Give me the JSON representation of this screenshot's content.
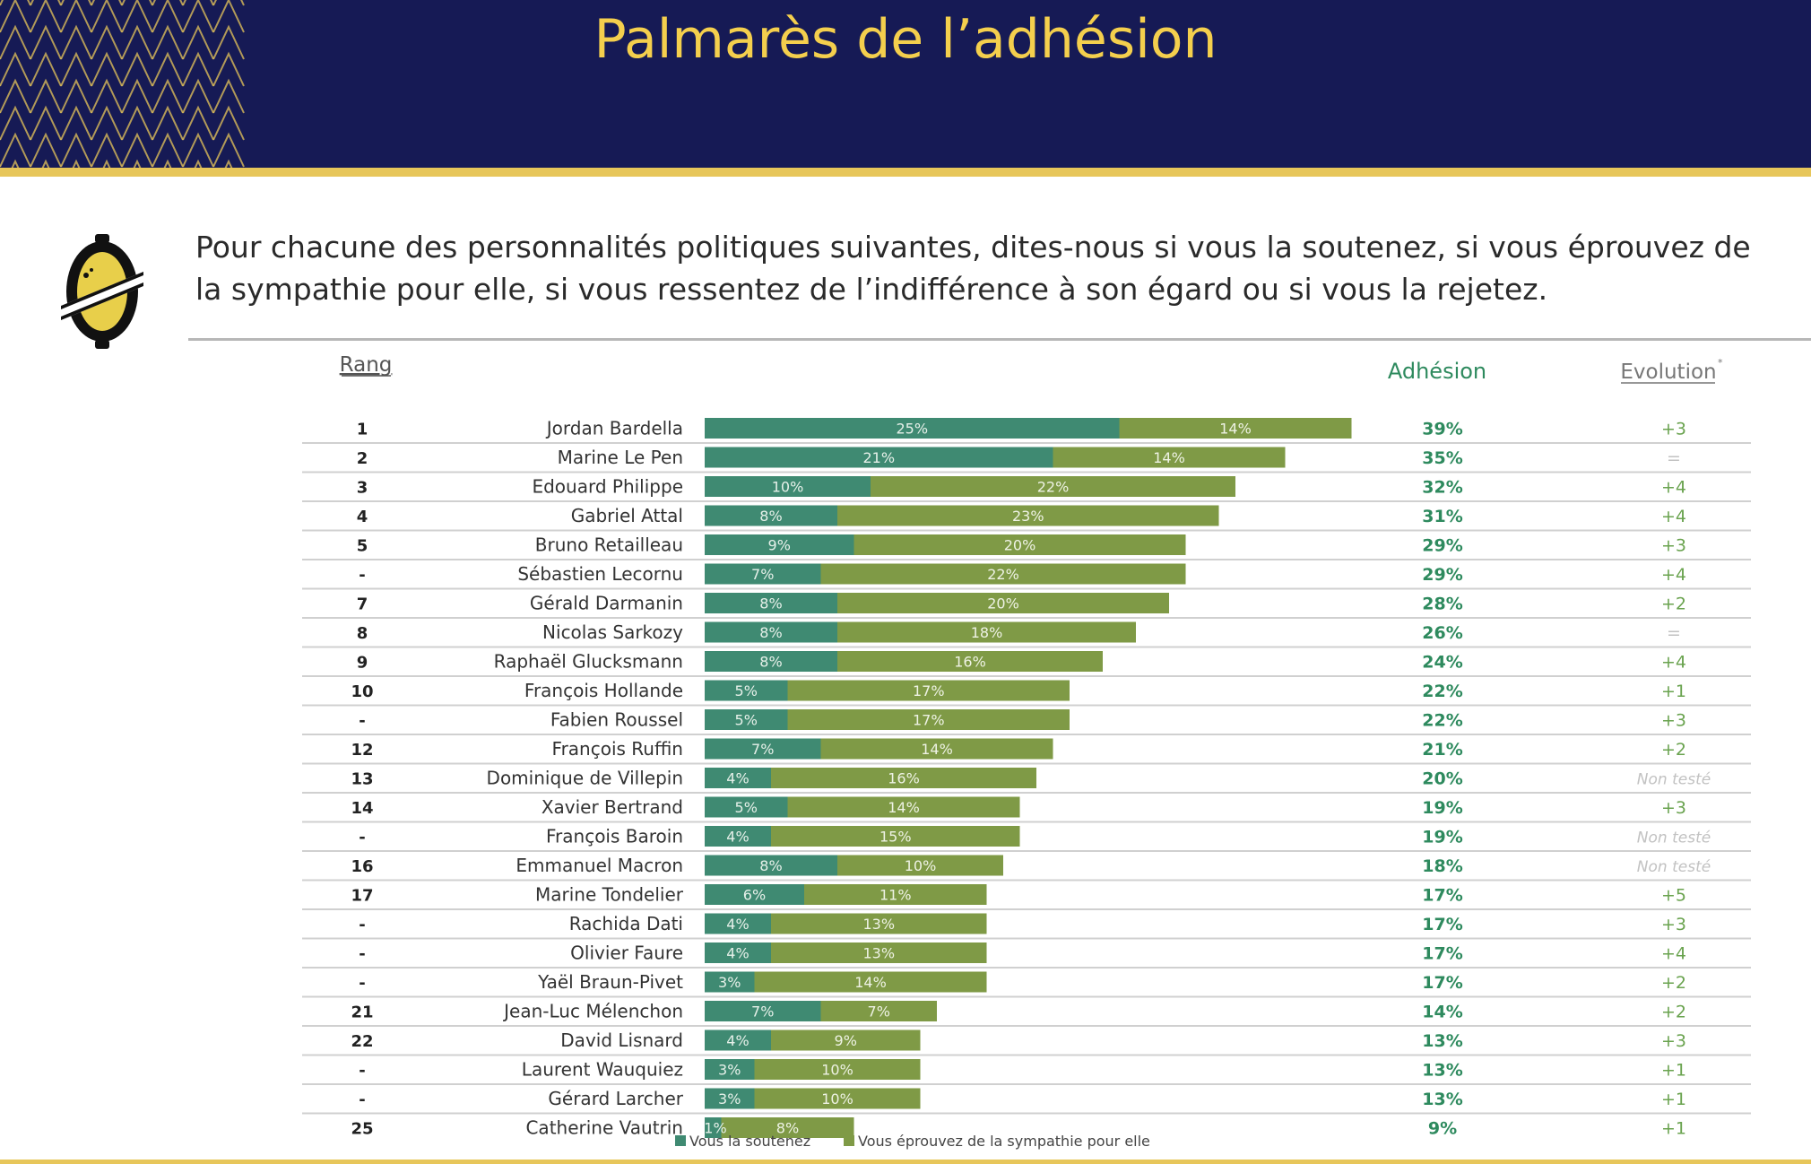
{
  "title": "Palmarès de l’adhésion",
  "question": "Pour chacune des personnalités politiques suivantes, dites-nous si vous la soutenez, si vous éprouvez de la sympathie pour elle, si vous ressentez de l’indifférence à son égard ou si vous la rejetez.",
  "colors": {
    "header_bg": "#161a55",
    "title": "#f4cf4d",
    "accent_gold": "#e7c65a",
    "support": "#3f8a72",
    "sympathy": "#7f9a46",
    "adhesion_text": "#2e8a5e",
    "evolution_text": "#6aa34f",
    "non_teste": "#c2c2c2"
  },
  "chart_data": {
    "type": "bar",
    "orientation": "horizontal",
    "stacked": true,
    "column_headers": {
      "rank": "Rang",
      "adhesion": "Adhésion",
      "evolution": "Evolution",
      "evolution_mark": "*"
    },
    "categories": [
      "Jordan Bardella",
      "Marine Le Pen",
      "Edouard Philippe",
      "Gabriel Attal",
      "Bruno Retailleau",
      "Sébastien Lecornu",
      "Gérald Darmanin",
      "Nicolas Sarkozy",
      "Raphaël Glucksmann",
      "François Hollande",
      "Fabien Roussel",
      "François Ruffin",
      "Dominique de Villepin",
      "Xavier Bertrand",
      "François Baroin",
      "Emmanuel Macron",
      "Marine Tondelier",
      "Rachida Dati",
      "Olivier Faure",
      "Yaël Braun-Pivet",
      "Jean-Luc Mélenchon",
      "David Lisnard",
      "Laurent Wauquiez",
      "Gérard Larcher",
      "Catherine Vautrin"
    ],
    "ranks": [
      "1",
      "2",
      "3",
      "4",
      "5",
      "-",
      "7",
      "8",
      "9",
      "10",
      "-",
      "12",
      "13",
      "14",
      "-",
      "16",
      "17",
      "-",
      "-",
      "-",
      "21",
      "22",
      "-",
      "-",
      "25"
    ],
    "series": [
      {
        "name": "Vous la soutenez",
        "values": [
          25,
          21,
          10,
          8,
          9,
          7,
          8,
          8,
          8,
          5,
          5,
          7,
          4,
          5,
          4,
          8,
          6,
          4,
          4,
          3,
          7,
          4,
          3,
          3,
          1
        ]
      },
      {
        "name": "Vous éprouvez de la sympathie pour elle",
        "values": [
          14,
          14,
          22,
          23,
          20,
          22,
          20,
          18,
          16,
          17,
          17,
          14,
          16,
          14,
          15,
          10,
          11,
          13,
          13,
          14,
          7,
          9,
          10,
          10,
          8
        ]
      }
    ],
    "adhesion": [
      "39%",
      "35%",
      "32%",
      "31%",
      "29%",
      "29%",
      "28%",
      "26%",
      "24%",
      "22%",
      "22%",
      "21%",
      "20%",
      "19%",
      "19%",
      "18%",
      "17%",
      "17%",
      "17%",
      "17%",
      "14%",
      "13%",
      "13%",
      "13%",
      "9%"
    ],
    "evolution": [
      "+3",
      "=",
      "+4",
      "+4",
      "+3",
      "+4",
      "+2",
      "=",
      "+4",
      "+1",
      "+3",
      "+2",
      "Non testé",
      "+3",
      "Non testé",
      "Non testé",
      "+5",
      "+3",
      "+4",
      "+2",
      "+2",
      "+3",
      "+1",
      "+1",
      "+1"
    ],
    "value_suffix": "%",
    "xlim": [
      0,
      40
    ],
    "legend_position": "bottom",
    "grid": false
  }
}
